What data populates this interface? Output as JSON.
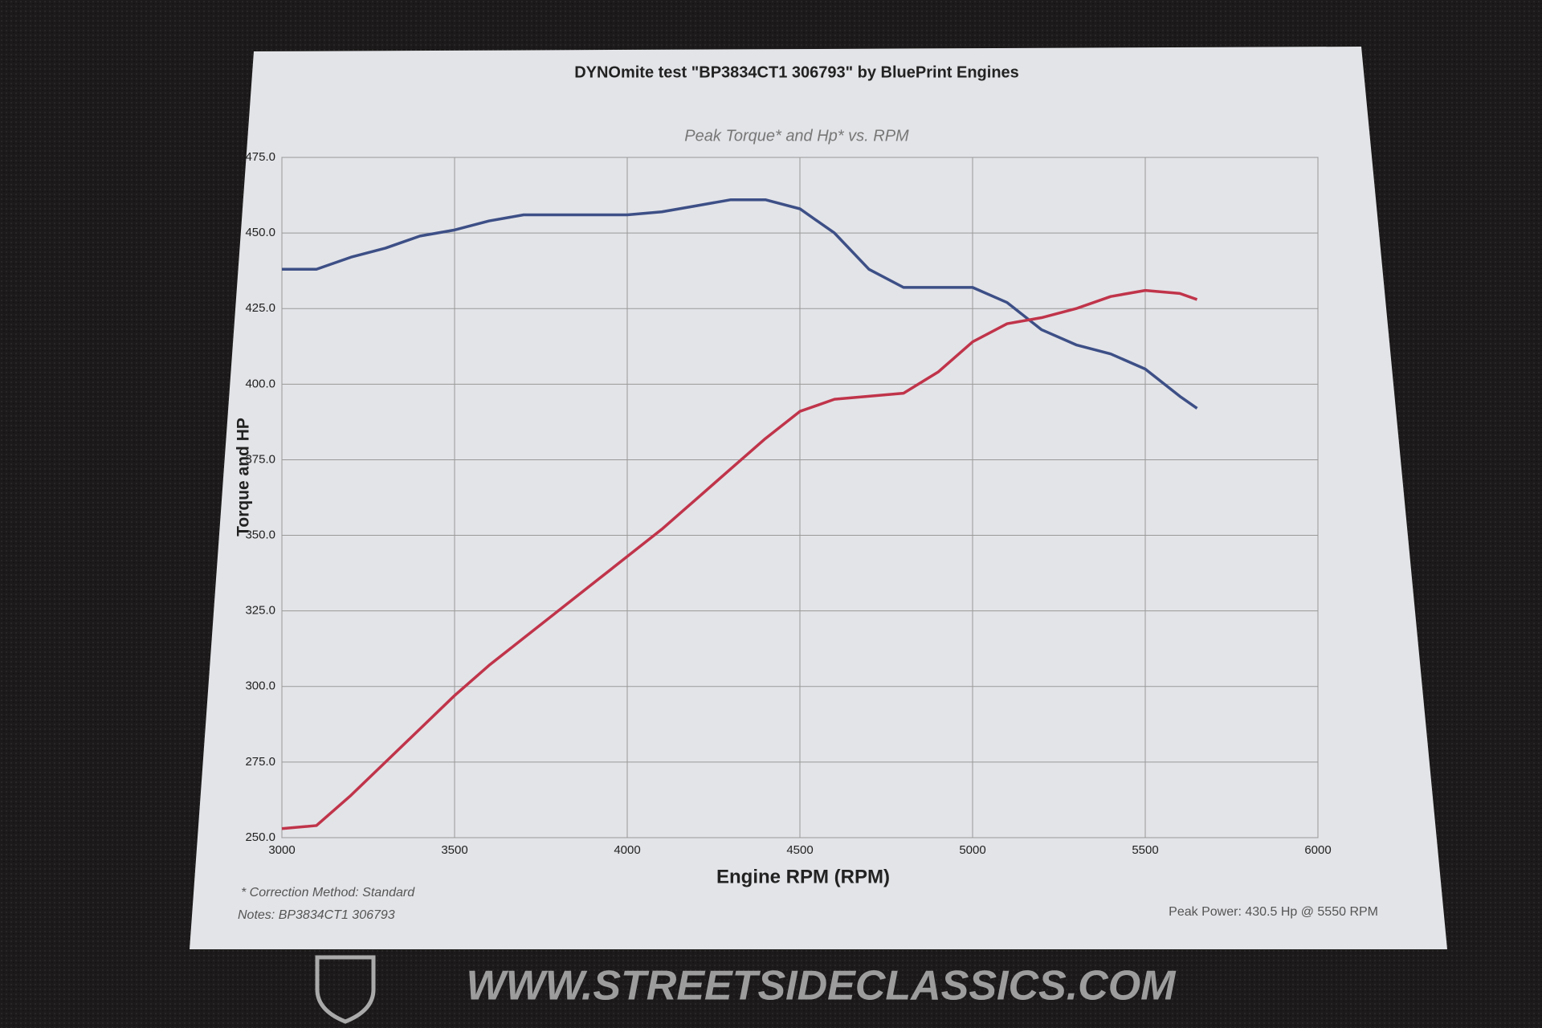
{
  "chart_data": {
    "type": "line",
    "title": "DYNOmite test \"BP3834CT1  306793\" by BluePrint Engines",
    "subtitle": "Peak Torque* and Hp* vs. RPM",
    "xlabel": "Engine RPM (RPM)",
    "ylabel": "Torque and HP",
    "annotations": [
      "* Correction Method: Standard",
      "Notes: BP3834CT1  306793",
      "Peak Power: 430.5 Hp @ 5550 RPM"
    ],
    "watermark": "WWW.STREETSIDECLASSICS.COM",
    "x": [
      3000,
      3100,
      3200,
      3300,
      3400,
      3500,
      3600,
      3700,
      3800,
      3900,
      4000,
      4100,
      4200,
      4300,
      4400,
      4500,
      4600,
      4700,
      4800,
      4900,
      5000,
      5100,
      5200,
      5300,
      5400,
      5500,
      5600,
      5650
    ],
    "series": [
      {
        "color": "#3d4f86",
        "values": [
          438,
          438,
          442,
          445,
          449,
          451,
          454,
          456,
          456,
          456,
          456,
          457,
          459,
          461,
          461,
          458,
          450,
          438,
          432,
          432,
          432,
          427,
          418,
          413,
          410,
          405,
          396,
          392
        ]
      },
      {
        "color": "#c0344a",
        "values": [
          253,
          254,
          264,
          275,
          286,
          297,
          307,
          316,
          325,
          334,
          343,
          352,
          362,
          372,
          382,
          391,
          395,
          396,
          397,
          404,
          414,
          420,
          422,
          425,
          429,
          431,
          430,
          428
        ]
      }
    ],
    "xlim": [
      3000,
      6000
    ],
    "xticks": [
      3000,
      3500,
      4000,
      4500,
      5000,
      5500,
      6000
    ],
    "ylim": [
      250,
      475
    ],
    "yticks": [
      {
        "value": 250,
        "label": "250.0"
      },
      {
        "value": 275,
        "label": "275.0"
      },
      {
        "value": 300,
        "label": "300.0"
      },
      {
        "value": 325,
        "label": "325.0"
      },
      {
        "value": 350,
        "label": "350.0"
      },
      {
        "value": 375,
        "label": "375.0"
      },
      {
        "value": 400,
        "label": "400.0"
      },
      {
        "value": 425,
        "label": "425.0"
      },
      {
        "value": 450,
        "label": "450.0"
      },
      {
        "value": 475,
        "label": "475.0"
      }
    ],
    "grid": true
  }
}
